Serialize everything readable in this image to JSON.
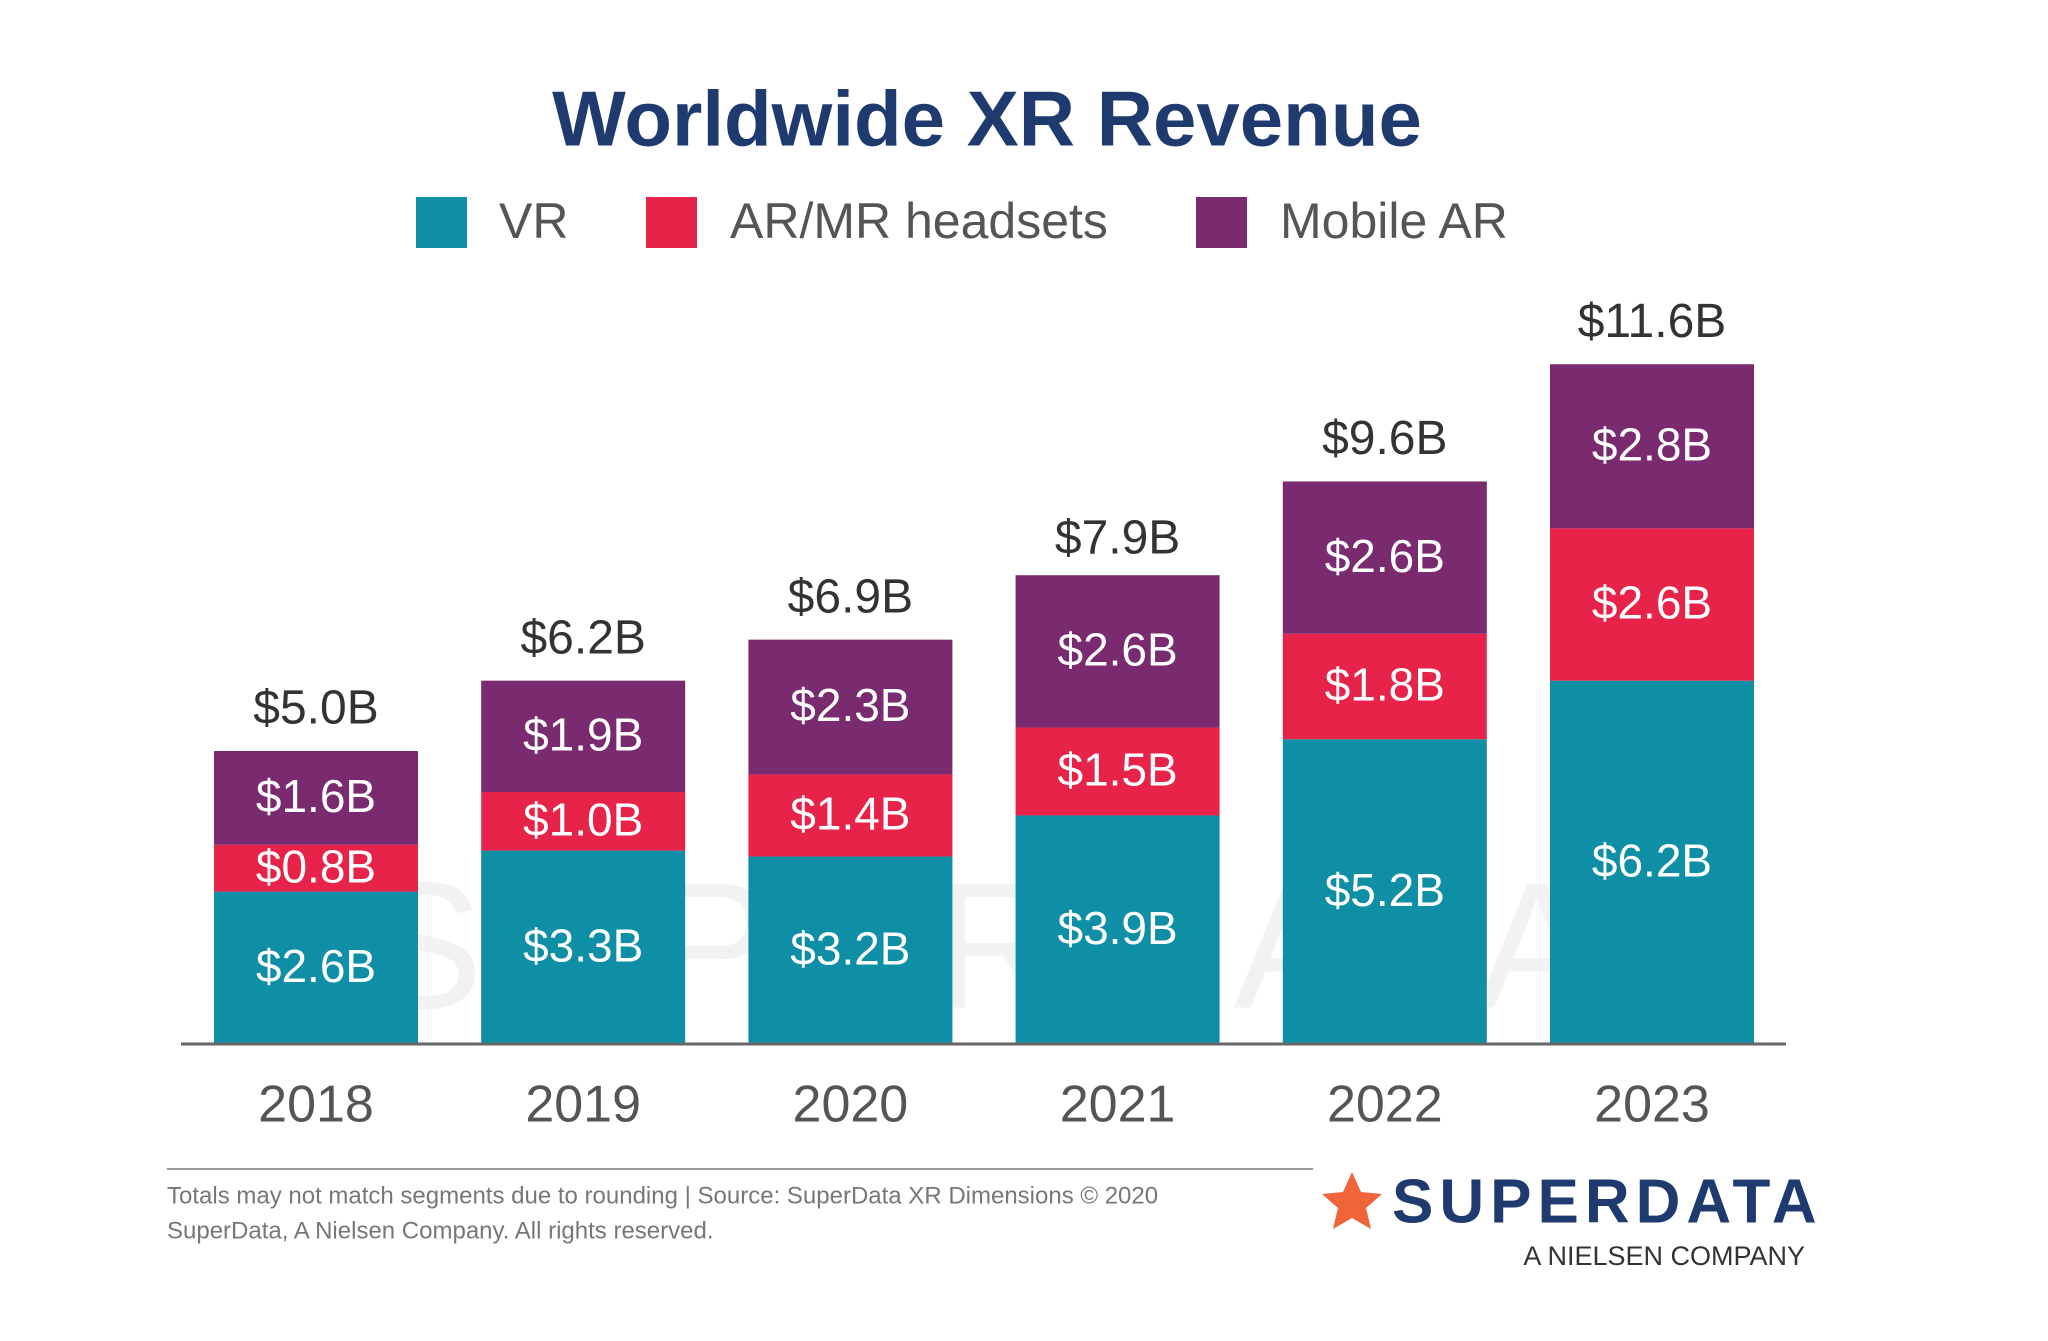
{
  "chart_data": {
    "type": "stacked_bar",
    "title": "Worldwide XR Revenue",
    "categories": [
      "2018",
      "2019",
      "2020",
      "2021",
      "2022",
      "2023"
    ],
    "series": [
      {
        "name": "VR",
        "color": "#0e8fa5",
        "values": [
          2.6,
          3.3,
          3.2,
          3.9,
          5.2,
          6.2
        ],
        "value_labels": [
          "$2.6B",
          "$3.3B",
          "$3.2B",
          "$3.9B",
          "$5.2B",
          "$6.2B"
        ]
      },
      {
        "name": "AR/MR headsets",
        "color": "#e8234a",
        "values": [
          0.8,
          1.0,
          1.4,
          1.5,
          1.8,
          2.6
        ],
        "value_labels": [
          "$0.8B",
          "$1.0B",
          "$1.4B",
          "$1.5B",
          "$1.8B",
          "$2.6B"
        ]
      },
      {
        "name": "Mobile AR",
        "color": "#7a2a6e",
        "values": [
          1.6,
          1.9,
          2.3,
          2.6,
          2.6,
          2.8
        ],
        "value_labels": [
          "$1.6B",
          "$1.9B",
          "$2.3B",
          "$2.6B",
          "$2.6B",
          "$2.8B"
        ]
      }
    ],
    "totals": {
      "values": [
        5.0,
        6.2,
        6.9,
        7.9,
        9.6,
        11.6
      ],
      "value_labels": [
        "$5.0B",
        "$6.2B",
        "$6.9B",
        "$7.9B",
        "$9.6B",
        "$11.6B"
      ]
    },
    "watermark": "SUPERDATA",
    "footnote": [
      "Totals may not match segments due to rounding | Source: SuperData XR Dimensions © 2020",
      "SuperData, A Nielsen Company. All rights reserved."
    ],
    "logo": {
      "name": "SUPERDATA",
      "tagline": "A NIELSEN COMPANY"
    }
  }
}
